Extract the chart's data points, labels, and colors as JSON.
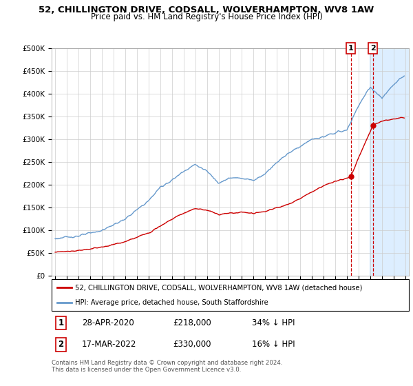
{
  "title": "52, CHILLINGTON DRIVE, CODSALL, WOLVERHAMPTON, WV8 1AW",
  "subtitle": "Price paid vs. HM Land Registry's House Price Index (HPI)",
  "ylim": [
    0,
    500000
  ],
  "yticks": [
    0,
    50000,
    100000,
    150000,
    200000,
    250000,
    300000,
    350000,
    400000,
    450000,
    500000
  ],
  "line_color_red": "#cc0000",
  "line_color_blue": "#6699cc",
  "highlight_color": "#ddeeff",
  "transaction_1": {
    "date_x": 2020.32,
    "price": 218000
  },
  "transaction_2": {
    "date_x": 2022.21,
    "price": 330000
  },
  "legend_line1": "52, CHILLINGTON DRIVE, CODSALL, WOLVERHAMPTON, WV8 1AW (detached house)",
  "legend_line2": "HPI: Average price, detached house, South Staffordshire",
  "footnote": "Contains HM Land Registry data © Crown copyright and database right 2024.\nThis data is licensed under the Open Government Licence v3.0.",
  "xmin": 1995,
  "xmax": 2025,
  "background_color": "#ffffff",
  "grid_color": "#cccccc",
  "hpi_anchors_x": [
    1995,
    1997,
    1999,
    2001,
    2003,
    2004,
    2005,
    2006,
    2007,
    2008,
    2009,
    2010,
    2011,
    2012,
    2013,
    2014,
    2015,
    2016,
    2017,
    2018,
    2019,
    2020,
    2021,
    2022,
    2023,
    2024,
    2024.9
  ],
  "hpi_anchors_y": [
    82000,
    88000,
    100000,
    125000,
    165000,
    195000,
    210000,
    230000,
    245000,
    230000,
    205000,
    215000,
    215000,
    210000,
    225000,
    250000,
    270000,
    285000,
    300000,
    305000,
    315000,
    320000,
    375000,
    415000,
    390000,
    420000,
    440000
  ],
  "price_anchors_x": [
    1995,
    1997,
    1999,
    2001,
    2003,
    2004,
    2005,
    2006,
    2007,
    2008,
    2009,
    2010,
    2011,
    2012,
    2013,
    2014,
    2015,
    2016,
    2017,
    2018,
    2019,
    2020.1,
    2020.32,
    2021,
    2022.21,
    2023,
    2024,
    2024.9
  ],
  "price_anchors_y": [
    52000,
    56000,
    63000,
    75000,
    95000,
    110000,
    125000,
    138000,
    148000,
    145000,
    135000,
    138000,
    140000,
    138000,
    142000,
    150000,
    158000,
    170000,
    185000,
    198000,
    208000,
    215000,
    218000,
    260000,
    330000,
    340000,
    345000,
    348000
  ]
}
